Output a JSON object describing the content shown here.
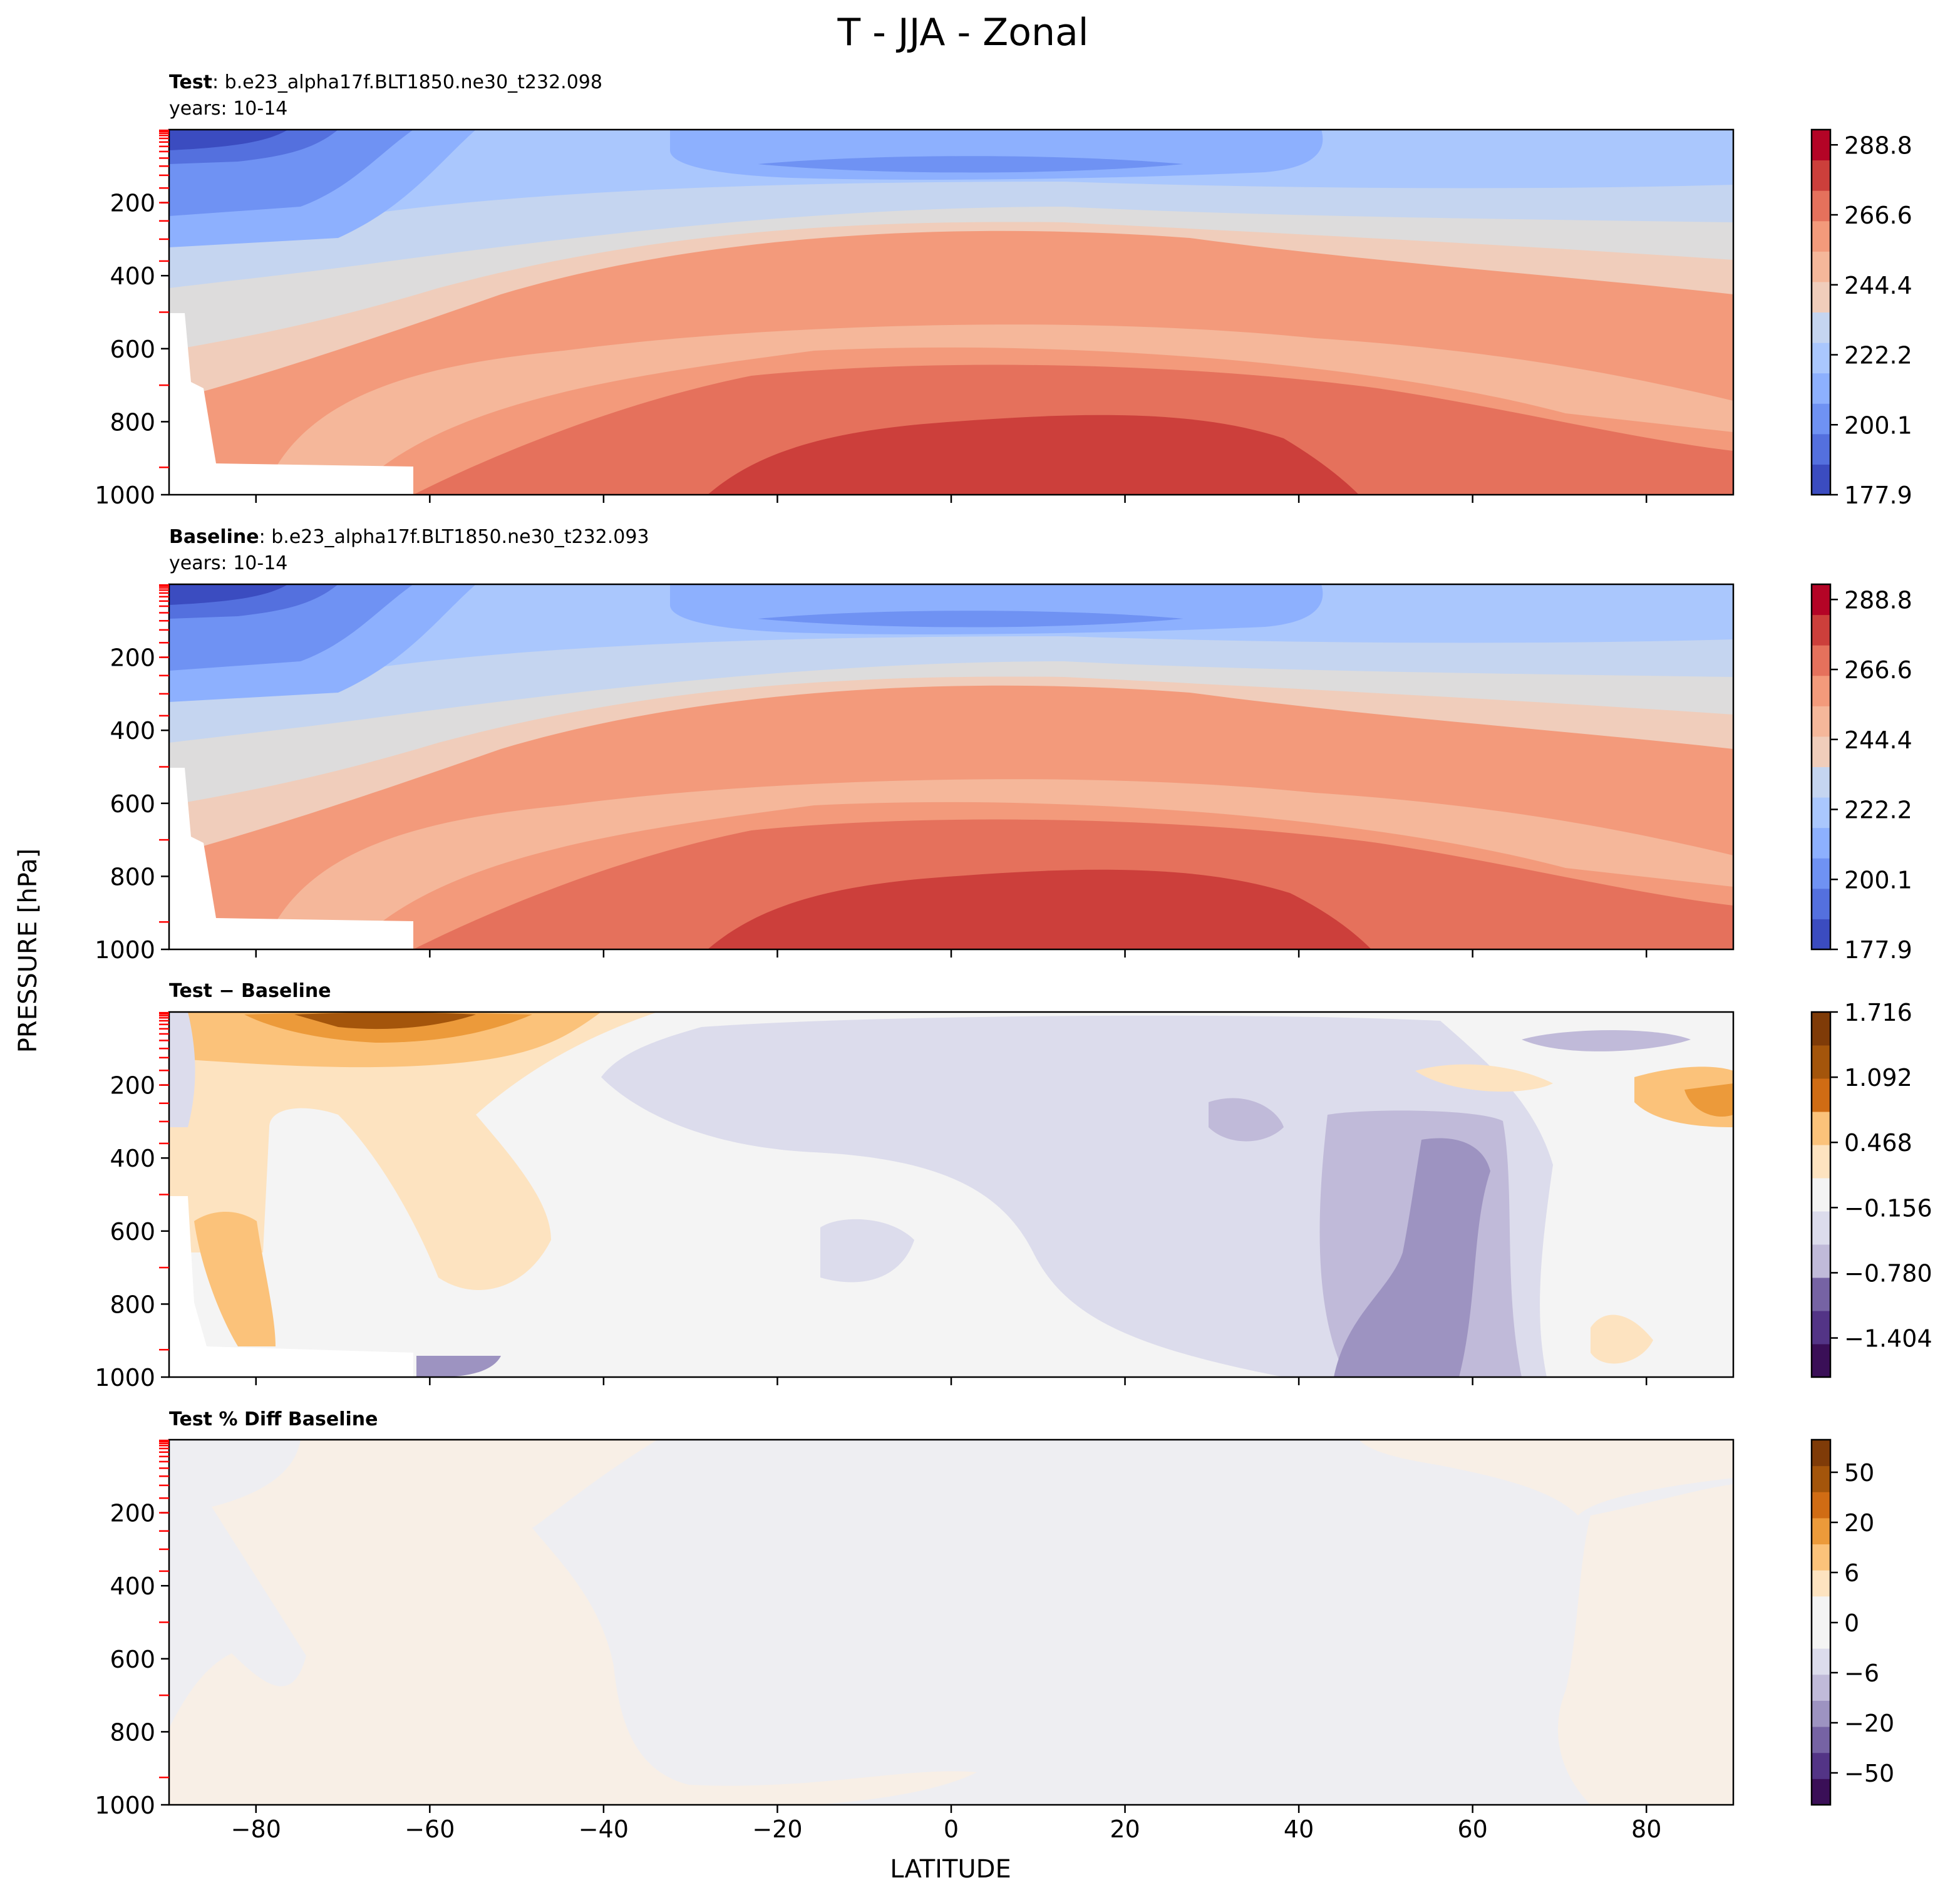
{
  "chart_data": {
    "type": "contour",
    "title": "T - JJA - Zonal",
    "xlabel": "LATITUDE",
    "ylabel": "PRESSURE [hPa]",
    "xlim": [
      -90,
      90
    ],
    "ylim": [
      1000,
      0
    ],
    "xticks": [
      -80,
      -60,
      -40,
      -20,
      0,
      20,
      40,
      60,
      80
    ],
    "yticks": [
      200,
      400,
      600,
      800,
      1000
    ],
    "panels": [
      {
        "id": "test",
        "title_bold": "Test",
        "title_rest": ": b.e23_alpha17f.BLT1850.ne30_t232.098",
        "subtitle": "years: 10-14",
        "colormap": "coolwarm",
        "colorbar_ticks": [
          "288.8",
          "266.6",
          "244.4",
          "222.2",
          "200.1",
          "177.9"
        ],
        "colorbar_levels": 12,
        "contour_isolines": [
          {
            "level": 200,
            "points": [
              [
                -90,
                105
              ],
              [
                -80,
                110
              ],
              [
                -70,
                125
              ],
              [
                -60,
                180
              ],
              [
                -50,
                170
              ],
              [
                -40,
                165
              ],
              [
                -30,
                150
              ],
              [
                -20,
                140
              ],
              [
                0,
                135
              ],
              [
                20,
                140
              ],
              [
                40,
                150
              ],
              [
                60,
                165
              ],
              [
                80,
                180
              ],
              [
                90,
                185
              ]
            ]
          },
          {
            "level": 211,
            "points": [
              [
                -90,
                60
              ],
              [
                -80,
                70
              ],
              [
                -75,
                130
              ],
              [
                -68,
                180
              ],
              [
                -58,
                260
              ],
              [
                -50,
                265
              ],
              [
                -40,
                265
              ],
              [
                -20,
                240
              ],
              [
                0,
                225
              ],
              [
                20,
                225
              ],
              [
                40,
                235
              ],
              [
                60,
                250
              ],
              [
                80,
                260
              ],
              [
                90,
                265
              ]
            ]
          },
          {
            "level": 222,
            "points": [
              [
                -90,
                330
              ],
              [
                -80,
                320
              ],
              [
                -70,
                300
              ],
              [
                -60,
                290
              ],
              [
                -40,
                275
              ],
              [
                -20,
                265
              ],
              [
                0,
                255
              ],
              [
                20,
                255
              ],
              [
                40,
                265
              ],
              [
                60,
                290
              ],
              [
                80,
                310
              ],
              [
                90,
                315
              ]
            ]
          },
          {
            "level": 233,
            "points": [
              [
                -90,
                440
              ],
              [
                -80,
                420
              ],
              [
                -70,
                400
              ],
              [
                -60,
                380
              ],
              [
                -40,
                340
              ],
              [
                -20,
                290
              ],
              [
                0,
                280
              ],
              [
                20,
                280
              ],
              [
                40,
                300
              ],
              [
                60,
                320
              ],
              [
                80,
                345
              ],
              [
                90,
                360
              ]
            ]
          },
          {
            "level": 244,
            "points": [
              [
                -88,
                560
              ],
              [
                -80,
                545
              ],
              [
                -70,
                520
              ],
              [
                -60,
                495
              ],
              [
                -40,
                440
              ],
              [
                -20,
                385
              ],
              [
                0,
                360
              ],
              [
                20,
                360
              ],
              [
                40,
                390
              ],
              [
                60,
                410
              ],
              [
                80,
                440
              ],
              [
                90,
                455
              ]
            ]
          },
          {
            "level": 255,
            "points": [
              [
                -84,
                710
              ],
              [
                -75,
                670
              ],
              [
                -65,
                640
              ],
              [
                -55,
                600
              ],
              [
                -40,
                530
              ],
              [
                -20,
                460
              ],
              [
                0,
                420
              ],
              [
                20,
                420
              ],
              [
                40,
                440
              ],
              [
                60,
                480
              ],
              [
                80,
                520
              ],
              [
                90,
                535
              ]
            ]
          },
          {
            "level": 266,
            "points": [
              [
                -80,
                850
              ],
              [
                -70,
                760
              ],
              [
                -60,
                700
              ],
              [
                -50,
                650
              ],
              [
                -40,
                600
              ],
              [
                -30,
                570
              ],
              [
                -20,
                520
              ],
              [
                0,
                480
              ],
              [
                20,
                480
              ],
              [
                40,
                520
              ],
              [
                60,
                560
              ],
              [
                80,
                600
              ],
              [
                90,
                635
              ]
            ]
          },
          {
            "level": 277,
            "points": [
              [
                -70,
                990
              ],
              [
                -60,
                880
              ],
              [
                -50,
                820
              ],
              [
                -40,
                760
              ],
              [
                -30,
                680
              ],
              [
                -20,
                630
              ],
              [
                0,
                620
              ],
              [
                20,
                620
              ],
              [
                40,
                660
              ],
              [
                60,
                720
              ],
              [
                80,
                780
              ],
              [
                90,
                800
              ]
            ]
          },
          {
            "level": 288,
            "points": [
              [
                -30,
                1000
              ],
              [
                -20,
                950
              ],
              [
                0,
                860
              ],
              [
                20,
                820
              ],
              [
                40,
                900
              ],
              [
                45,
                1000
              ]
            ]
          }
        ]
      },
      {
        "id": "baseline",
        "title_bold": "Baseline",
        "title_rest": ": b.e23_alpha17f.BLT1850.ne30_t232.093",
        "subtitle": "years: 10-14",
        "colormap": "coolwarm",
        "colorbar_ticks": [
          "288.8",
          "266.6",
          "244.4",
          "222.2",
          "200.1",
          "177.9"
        ],
        "colorbar_levels": 12
      },
      {
        "id": "diff",
        "title_bold": "Test − Baseline",
        "title_rest": "",
        "subtitle": "",
        "colormap": "PuOr_r",
        "colorbar_ticks": [
          "1.716",
          "1.092",
          "0.468",
          "−0.156",
          "−0.780",
          "−1.404"
        ],
        "colorbar_levels": 11,
        "regions": [
          {
            "sign": "positive",
            "lat_range": [
              -90,
              -40
            ],
            "p_range": [
              0,
              600
            ],
            "approx_max": 1.7
          },
          {
            "sign": "negative",
            "lat_range": [
              -40,
              70
            ],
            "p_range": [
              0,
              1000
            ],
            "approx_min": -1.0
          },
          {
            "sign": "positive",
            "lat_range": [
              75,
              90
            ],
            "p_range": [
              180,
              300
            ],
            "approx_max": 1.2
          }
        ]
      },
      {
        "id": "pctdiff",
        "title_bold": "Test % Diff Baseline",
        "title_rest": "",
        "subtitle": "",
        "colormap": "PuOr_r",
        "colorbar_ticks": [
          "50",
          "20",
          "6",
          "0",
          "−6",
          "−20",
          "−50"
        ],
        "colorbar_levels": 14
      }
    ]
  },
  "colors": {
    "coolwarm": [
      "#3b4cc0",
      "#5470de",
      "#6f92f3",
      "#8db0fe",
      "#aac7fd",
      "#c5d5f0",
      "#dddcdc",
      "#f0cdbb",
      "#f5b79a",
      "#f39a7b",
      "#e5715c",
      "#cc3f3b",
      "#b40426"
    ],
    "puor": [
      "#3a0f57",
      "#533486",
      "#7663a4",
      "#9d93c1",
      "#c0bad9",
      "#dcdcec",
      "#f4f4f4",
      "#fde3c0",
      "#fbc27a",
      "#ec9a3a",
      "#d06c14",
      "#a4550b",
      "#7f3b08"
    ],
    "tick_red": "#ff0000"
  }
}
